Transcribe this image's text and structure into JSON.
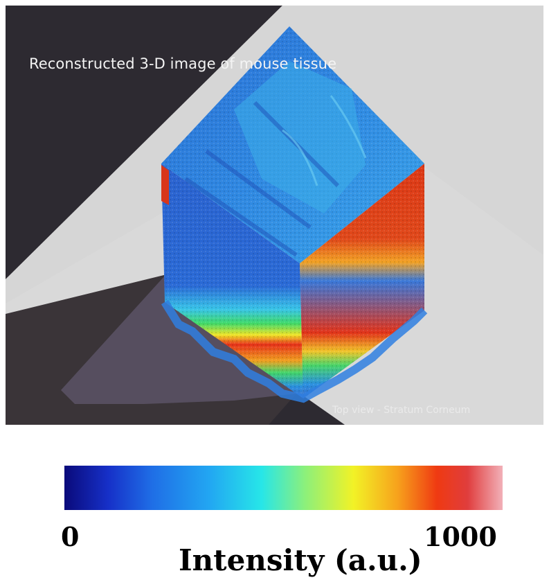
{
  "figure": {
    "title": "Reconstructed 3-D image of mouse tissue",
    "caption": "Top view - Stratum Corneum"
  },
  "colorbar": {
    "min_label": "0",
    "max_label": "1000",
    "label": "Intensity (a.u.)",
    "colormap": "jet"
  },
  "colors": {
    "background": "#2d2a31",
    "plane": "#d9d9d9",
    "shadow": "#3a3438",
    "tissue_blue": "#2b6fd8",
    "tissue_red": "#e23a1a"
  }
}
